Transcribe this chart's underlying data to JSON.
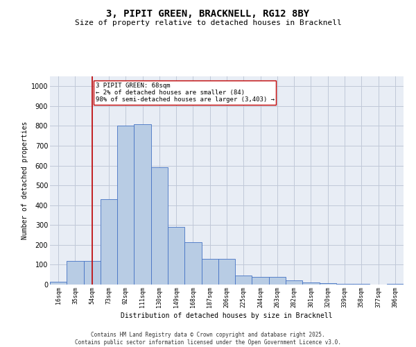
{
  "title": "3, PIPIT GREEN, BRACKNELL, RG12 8BY",
  "subtitle": "Size of property relative to detached houses in Bracknell",
  "xlabel": "Distribution of detached houses by size in Bracknell",
  "ylabel": "Number of detached properties",
  "categories": [
    "16sqm",
    "35sqm",
    "54sqm",
    "73sqm",
    "92sqm",
    "111sqm",
    "130sqm",
    "149sqm",
    "168sqm",
    "187sqm",
    "206sqm",
    "225sqm",
    "244sqm",
    "263sqm",
    "282sqm",
    "301sqm",
    "320sqm",
    "339sqm",
    "358sqm",
    "377sqm",
    "396sqm"
  ],
  "values": [
    15,
    120,
    120,
    430,
    800,
    810,
    590,
    290,
    215,
    130,
    130,
    45,
    40,
    40,
    20,
    10,
    8,
    3,
    2,
    0,
    5
  ],
  "bar_color": "#b8cce4",
  "bar_edge_color": "#4472c4",
  "vline_x": 2,
  "vline_color": "#c00000",
  "annotation_text": "3 PIPIT GREEN: 68sqm\n← 2% of detached houses are smaller (84)\n98% of semi-detached houses are larger (3,403) →",
  "annotation_box_color": "#ffffff",
  "annotation_box_edge": "#c00000",
  "ylim": [
    0,
    1050
  ],
  "yticks": [
    0,
    100,
    200,
    300,
    400,
    500,
    600,
    700,
    800,
    900,
    1000
  ],
  "background_color": "#ffffff",
  "plot_bg_color": "#e8edf5",
  "grid_color": "#c0c8d8",
  "footer_line1": "Contains HM Land Registry data © Crown copyright and database right 2025.",
  "footer_line2": "Contains public sector information licensed under the Open Government Licence v3.0."
}
